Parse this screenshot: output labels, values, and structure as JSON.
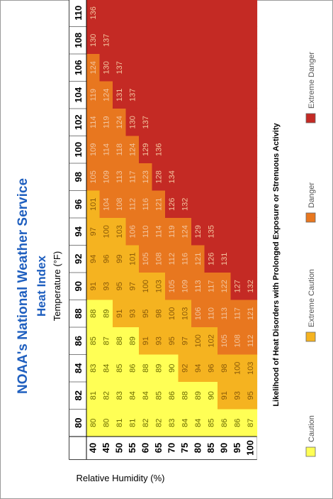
{
  "header": {
    "title": "NOAA's National Weather Service",
    "subtitle": "Heat Index",
    "axis_title": "Temperature (°F)"
  },
  "side_label": "Relative Humidity (%)",
  "legend": {
    "title": "Likelihood of Heat Disorders with Prolonged Exposure or Strenuous Activity",
    "items": [
      {
        "label": "Caution",
        "color": "#ffff55"
      },
      {
        "label": "Extreme Caution",
        "color": "#f5b320"
      },
      {
        "label": "Danger",
        "color": "#e8771f"
      },
      {
        "label": "Extreme Danger",
        "color": "#c42a24"
      }
    ]
  },
  "chart_data": {
    "type": "heatmap",
    "title": "Heat Index",
    "xlabel": "Temperature (°F)",
    "ylabel": "Relative Humidity (%)",
    "temperatures": [
      80,
      82,
      84,
      86,
      88,
      90,
      92,
      94,
      96,
      98,
      100,
      102,
      104,
      106,
      108,
      110
    ],
    "humidities": [
      40,
      45,
      50,
      55,
      60,
      65,
      70,
      75,
      80,
      85,
      90,
      95,
      100
    ],
    "values": [
      [
        80,
        81,
        83,
        85,
        88,
        91,
        94,
        97,
        101,
        105,
        109,
        114,
        119,
        124,
        130,
        136
      ],
      [
        80,
        82,
        84,
        87,
        89,
        93,
        96,
        100,
        104,
        109,
        114,
        119,
        124,
        130,
        137,
        null
      ],
      [
        81,
        83,
        85,
        88,
        91,
        95,
        99,
        103,
        108,
        113,
        118,
        124,
        131,
        137,
        null,
        null
      ],
      [
        81,
        84,
        86,
        89,
        93,
        97,
        101,
        106,
        112,
        117,
        124,
        130,
        137,
        null,
        null,
        null
      ],
      [
        82,
        84,
        88,
        91,
        95,
        100,
        105,
        110,
        116,
        123,
        129,
        137,
        null,
        null,
        null,
        null
      ],
      [
        82,
        85,
        89,
        93,
        98,
        103,
        108,
        114,
        121,
        128,
        136,
        null,
        null,
        null,
        null,
        null
      ],
      [
        83,
        86,
        90,
        95,
        100,
        105,
        112,
        119,
        126,
        134,
        null,
        null,
        null,
        null,
        null,
        null
      ],
      [
        84,
        88,
        92,
        97,
        103,
        109,
        116,
        124,
        132,
        null,
        null,
        null,
        null,
        null,
        null,
        null
      ],
      [
        84,
        89,
        94,
        100,
        106,
        113,
        121,
        129,
        null,
        null,
        null,
        null,
        null,
        null,
        null,
        null
      ],
      [
        85,
        90,
        96,
        102,
        110,
        117,
        126,
        135,
        null,
        null,
        null,
        null,
        null,
        null,
        null,
        null
      ],
      [
        86,
        91,
        98,
        105,
        113,
        122,
        131,
        null,
        null,
        null,
        null,
        null,
        null,
        null,
        null,
        null
      ],
      [
        86,
        93,
        100,
        108,
        117,
        127,
        null,
        null,
        null,
        null,
        null,
        null,
        null,
        null,
        null,
        null
      ],
      [
        87,
        95,
        103,
        112,
        121,
        132,
        null,
        null,
        null,
        null,
        null,
        null,
        null,
        null,
        null,
        null
      ]
    ],
    "thresholds": {
      "caution_below": 91,
      "extreme_caution_below": 104,
      "danger_below": 126
    },
    "colors": {
      "caution": "#ffff55",
      "extreme_caution": "#f5b320",
      "danger": "#e8771f",
      "extreme_danger": "#c42a24"
    }
  }
}
